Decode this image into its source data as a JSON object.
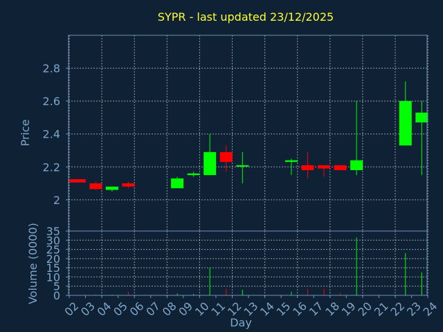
{
  "chart_data": {
    "type": "candlestick",
    "title": "SYPR - last updated 23/12/2025",
    "xlabel": "Day",
    "price_panel": {
      "ylabel": "Price",
      "ylim": [
        1.81,
        3.0
      ],
      "yticks": [
        "2",
        "2.2",
        "2.4",
        "2.6",
        "2.8"
      ],
      "ytick_values": [
        2.0,
        2.2,
        2.4,
        2.6,
        2.8
      ]
    },
    "volume_panel": {
      "ylabel": "Volume (0000)",
      "ylim": [
        0,
        35
      ],
      "yticks": [
        "0",
        "5",
        "10",
        "15",
        "20",
        "25",
        "30",
        "35"
      ],
      "ytick_values": [
        0,
        5,
        10,
        15,
        20,
        25,
        30,
        35
      ]
    },
    "x_ticks": [
      "02",
      "03",
      "04",
      "05",
      "06",
      "07",
      "08",
      "09",
      "10",
      "11",
      "12",
      "13",
      "14",
      "15",
      "16",
      "17",
      "18",
      "19",
      "20",
      "21",
      "22",
      "23",
      "24"
    ],
    "grid": true,
    "colors": {
      "up": "#00ff00",
      "down": "#ff0000",
      "title": "#ffff33",
      "axis": "#7fa6c8"
    },
    "candles": [
      {
        "day": "02",
        "open": 2.125,
        "high": 2.125,
        "low": 2.105,
        "close": 2.105,
        "volume": 0.3
      },
      {
        "day": "03",
        "open": 2.1,
        "high": 2.11,
        "low": 2.06,
        "close": 2.065,
        "volume": 0.5
      },
      {
        "day": "04",
        "open": 2.06,
        "high": 2.08,
        "low": 2.05,
        "close": 2.08,
        "volume": 0.4
      },
      {
        "day": "05",
        "open": 2.1,
        "high": 2.11,
        "low": 2.07,
        "close": 2.08,
        "volume": 2.0
      },
      {
        "day": "08",
        "open": 2.07,
        "high": 2.14,
        "low": 2.07,
        "close": 2.13,
        "volume": 1.0
      },
      {
        "day": "09",
        "open": 2.15,
        "high": 2.17,
        "low": 2.14,
        "close": 2.16,
        "volume": 0.8
      },
      {
        "day": "10",
        "open": 2.15,
        "high": 2.4,
        "low": 2.15,
        "close": 2.29,
        "volume": 15.0
      },
      {
        "day": "11",
        "open": 2.29,
        "high": 2.33,
        "low": 2.17,
        "close": 2.23,
        "volume": 3.5
      },
      {
        "day": "12",
        "open": 2.205,
        "high": 2.29,
        "low": 2.1,
        "close": 2.21,
        "volume": 3.0
      },
      {
        "day": "15",
        "open": 2.23,
        "high": 2.25,
        "low": 2.15,
        "close": 2.24,
        "volume": 2.0
      },
      {
        "day": "16",
        "open": 2.21,
        "high": 2.29,
        "low": 2.13,
        "close": 2.18,
        "volume": 3.5
      },
      {
        "day": "17",
        "open": 2.21,
        "high": 2.21,
        "low": 2.14,
        "close": 2.19,
        "volume": 3.5
      },
      {
        "day": "18",
        "open": 2.21,
        "high": 2.21,
        "low": 2.18,
        "close": 2.18,
        "volume": 1.5
      },
      {
        "day": "19",
        "open": 2.18,
        "high": 2.6,
        "low": 2.15,
        "close": 2.24,
        "volume": 31.5
      },
      {
        "day": "22",
        "open": 2.33,
        "high": 2.72,
        "low": 2.33,
        "close": 2.6,
        "volume": 23.0
      },
      {
        "day": "23",
        "open": 2.47,
        "high": 2.6,
        "low": 2.15,
        "close": 2.53,
        "volume": 12.5
      }
    ]
  }
}
